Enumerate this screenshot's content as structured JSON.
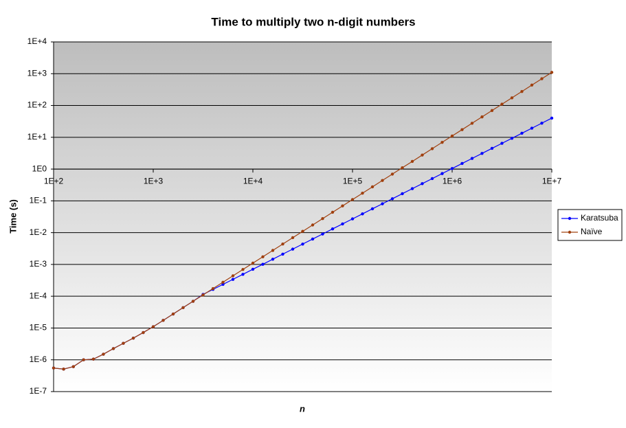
{
  "chart_data": {
    "type": "line",
    "title": "Time to multiply two n-digit numbers",
    "xlabel": "n",
    "ylabel": "Time (s)",
    "x": [
      100,
      126,
      158,
      200,
      251,
      316,
      398,
      501,
      631,
      794,
      1000,
      1259,
      1585,
      1995,
      2512,
      3162,
      3981,
      5012,
      6310,
      7943,
      10000,
      12589,
      15849,
      19953,
      25119,
      31623,
      39811,
      50119,
      63096,
      79433,
      100000,
      125893,
      158489,
      199526,
      251189,
      316228,
      398107,
      501187,
      630957,
      794328,
      1000000,
      1258925,
      1584893,
      1995262,
      2511886,
      3162278,
      3981072,
      5011872,
      6309573,
      7943282,
      10000000
    ],
    "series": [
      {
        "name": "Karatsuba",
        "color": "#0000ff",
        "values": [
          5.5e-07,
          5.1e-07,
          6.1e-07,
          1e-06,
          1.05e-06,
          1.5e-06,
          2.25e-06,
          3.3e-06,
          4.8e-06,
          7.2e-06,
          1.1e-05,
          1.74e-05,
          2.76e-05,
          4.38e-05,
          6.94e-05,
          0.000114,
          0.000164,
          0.000236,
          0.000339,
          0.000489,
          0.000704,
          0.00101,
          0.00146,
          0.00211,
          0.00303,
          0.00437,
          0.00629,
          0.00906,
          0.0131,
          0.0188,
          0.0271,
          0.039,
          0.0562,
          0.0809,
          0.1165,
          0.168,
          0.242,
          0.348,
          0.501,
          0.722,
          1.04,
          1.5,
          2.16,
          3.11,
          4.48,
          6.45,
          9.3,
          13.4,
          19.3,
          27.8,
          40
        ]
      },
      {
        "name": "Naïve",
        "color": "#a0400f",
        "values": [
          5.5e-07,
          5.1e-07,
          6.1e-07,
          1e-06,
          1.05e-06,
          1.5e-06,
          2.25e-06,
          3.3e-06,
          4.8e-06,
          7.2e-06,
          1.1e-05,
          1.74e-05,
          2.76e-05,
          4.38e-05,
          6.94e-05,
          0.00011,
          0.000174,
          0.000276,
          0.000438,
          0.000694,
          0.0011,
          0.00174,
          0.00276,
          0.00438,
          0.00694,
          0.011,
          0.0174,
          0.0276,
          0.0438,
          0.0694,
          0.11,
          0.174,
          0.276,
          0.438,
          0.694,
          1.1,
          1.74,
          2.76,
          4.38,
          6.94,
          11,
          17.4,
          27.6,
          43.8,
          69.4,
          110,
          174,
          276,
          438,
          694,
          1100
        ]
      }
    ],
    "xscale": "log",
    "yscale": "log",
    "xlim": [
      100,
      10000000
    ],
    "xticks": [
      {
        "value": 100,
        "label": "1E+2"
      },
      {
        "value": 1000,
        "label": "1E+3"
      },
      {
        "value": 10000,
        "label": "1E+4"
      },
      {
        "value": 100000,
        "label": "1E+5"
      },
      {
        "value": 1000000,
        "label": "1E+6"
      },
      {
        "value": 10000000,
        "label": "1E+7"
      }
    ],
    "ylim": [
      1e-07,
      10000
    ],
    "yticks": [
      {
        "value": 10000,
        "label": "1E+4"
      },
      {
        "value": 1000,
        "label": "1E+3"
      },
      {
        "value": 100,
        "label": "1E+2"
      },
      {
        "value": 10,
        "label": "1E+1"
      },
      {
        "value": 1,
        "label": "1E0"
      },
      {
        "value": 0.1,
        "label": "1E-1"
      },
      {
        "value": 0.01,
        "label": "1E-2"
      },
      {
        "value": 0.001,
        "label": "1E-3"
      },
      {
        "value": 0.0001,
        "label": "1E-4"
      },
      {
        "value": 1e-05,
        "label": "1E-5"
      },
      {
        "value": 1e-06,
        "label": "1E-6"
      },
      {
        "value": 1e-07,
        "label": "1E-7"
      }
    ],
    "grid": true,
    "legend": "right"
  }
}
